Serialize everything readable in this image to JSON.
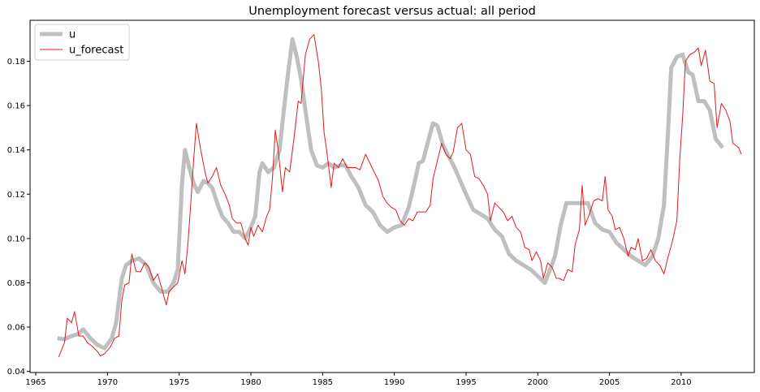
{
  "chart_data": {
    "type": "line",
    "title": "Unemployment forecast versus actual: all period",
    "xlabel": "",
    "ylabel": "",
    "xlim": [
      1964.6,
      1967.0
    ],
    "ylim": [
      0.0395,
      0.1985
    ],
    "xticks": [
      1965,
      1970,
      1975,
      1980,
      1985,
      1990,
      1995,
      2000,
      2005,
      2010
    ],
    "xtick_labels": [
      "1965",
      "1970",
      "1975",
      "1980",
      "1985",
      "1990",
      "1995",
      "2000",
      "2005",
      "2010"
    ],
    "yticks": [
      0.04,
      0.06,
      0.08,
      0.1,
      0.12,
      0.14,
      0.16,
      0.18
    ],
    "ytick_labels": [
      "0.04",
      "0.06",
      "0.08",
      "0.10",
      "0.12",
      "0.14",
      "0.16",
      "0.18"
    ],
    "legend": {
      "position": "top-left",
      "entries": [
        "u",
        "u_forecast"
      ]
    },
    "grid": false,
    "series": [
      {
        "name": "u",
        "color": "#bfbfbf",
        "points": [
          [
            1966.5,
            0.055
          ],
          [
            1967.0,
            0.0545
          ],
          [
            1967.5,
            0.056
          ],
          [
            1968.0,
            0.057
          ],
          [
            1968.3,
            0.059
          ],
          [
            1968.8,
            0.055
          ],
          [
            1969.3,
            0.052
          ],
          [
            1969.8,
            0.0505
          ],
          [
            1970.3,
            0.055
          ],
          [
            1970.6,
            0.062
          ],
          [
            1971.0,
            0.082
          ],
          [
            1971.3,
            0.088
          ],
          [
            1971.7,
            0.09
          ],
          [
            1972.2,
            0.091
          ],
          [
            1972.7,
            0.088
          ],
          [
            1973.2,
            0.08
          ],
          [
            1973.7,
            0.076
          ],
          [
            1974.2,
            0.076
          ],
          [
            1974.6,
            0.08
          ],
          [
            1974.9,
            0.086
          ],
          [
            1975.2,
            0.125
          ],
          [
            1975.4,
            0.14
          ],
          [
            1975.7,
            0.132
          ],
          [
            1976.0,
            0.125
          ],
          [
            1976.3,
            0.121
          ],
          [
            1976.7,
            0.126
          ],
          [
            1977.0,
            0.125
          ],
          [
            1977.3,
            0.123
          ],
          [
            1977.7,
            0.115
          ],
          [
            1978.0,
            0.11
          ],
          [
            1978.4,
            0.107
          ],
          [
            1978.8,
            0.103
          ],
          [
            1979.2,
            0.103
          ],
          [
            1979.6,
            0.1
          ],
          [
            1980.0,
            0.105
          ],
          [
            1980.3,
            0.11
          ],
          [
            1980.6,
            0.13
          ],
          [
            1980.8,
            0.134
          ],
          [
            1981.2,
            0.13
          ],
          [
            1981.6,
            0.132
          ],
          [
            1982.0,
            0.14
          ],
          [
            1982.3,
            0.158
          ],
          [
            1982.6,
            0.175
          ],
          [
            1982.9,
            0.19
          ],
          [
            1983.2,
            0.182
          ],
          [
            1983.5,
            0.172
          ],
          [
            1983.8,
            0.158
          ],
          [
            1984.2,
            0.14
          ],
          [
            1984.6,
            0.133
          ],
          [
            1985.0,
            0.132
          ],
          [
            1985.4,
            0.134
          ],
          [
            1985.8,
            0.132
          ],
          [
            1986.2,
            0.133
          ],
          [
            1986.6,
            0.133
          ],
          [
            1987.0,
            0.128
          ],
          [
            1987.5,
            0.123
          ],
          [
            1988.0,
            0.115
          ],
          [
            1988.5,
            0.112
          ],
          [
            1989.0,
            0.106
          ],
          [
            1989.5,
            0.103
          ],
          [
            1990.0,
            0.105
          ],
          [
            1990.5,
            0.106
          ],
          [
            1991.0,
            0.114
          ],
          [
            1991.4,
            0.125
          ],
          [
            1991.7,
            0.134
          ],
          [
            1992.0,
            0.135
          ],
          [
            1992.4,
            0.145
          ],
          [
            1992.7,
            0.152
          ],
          [
            1993.0,
            0.151
          ],
          [
            1993.4,
            0.142
          ],
          [
            1993.8,
            0.137
          ],
          [
            1994.2,
            0.132
          ],
          [
            1994.6,
            0.126
          ],
          [
            1995.0,
            0.12
          ],
          [
            1995.5,
            0.113
          ],
          [
            1996.0,
            0.111
          ],
          [
            1996.5,
            0.109
          ],
          [
            1997.0,
            0.104
          ],
          [
            1997.5,
            0.101
          ],
          [
            1998.0,
            0.093
          ],
          [
            1998.5,
            0.09
          ],
          [
            1999.0,
            0.088
          ],
          [
            1999.5,
            0.086
          ],
          [
            2000.0,
            0.083
          ],
          [
            2000.5,
            0.08
          ],
          [
            2000.8,
            0.085
          ],
          [
            2001.2,
            0.092
          ],
          [
            2001.6,
            0.106
          ],
          [
            2002.0,
            0.116
          ],
          [
            2002.5,
            0.116
          ],
          [
            2003.0,
            0.116
          ],
          [
            2003.5,
            0.116
          ],
          [
            2004.0,
            0.107
          ],
          [
            2004.5,
            0.104
          ],
          [
            2005.0,
            0.103
          ],
          [
            2005.5,
            0.098
          ],
          [
            2006.0,
            0.095
          ],
          [
            2006.5,
            0.092
          ],
          [
            2007.0,
            0.09
          ],
          [
            2007.5,
            0.088
          ],
          [
            2008.0,
            0.092
          ],
          [
            2008.4,
            0.1
          ],
          [
            2008.8,
            0.115
          ],
          [
            2009.1,
            0.15
          ],
          [
            2009.3,
            0.177
          ],
          [
            2009.7,
            0.182
          ],
          [
            2010.1,
            0.183
          ],
          [
            2010.5,
            0.175
          ],
          [
            2010.8,
            0.174
          ],
          [
            2011.2,
            0.162
          ],
          [
            2011.6,
            0.162
          ],
          [
            2012.0,
            0.158
          ],
          [
            2012.4,
            0.145
          ],
          [
            2012.9,
            0.141
          ]
        ]
      },
      {
        "name": "u_forecast",
        "color": "#e41a1c",
        "points": [
          [
            1966.6,
            0.0465
          ],
          [
            1967.0,
            0.053
          ],
          [
            1967.2,
            0.064
          ],
          [
            1967.5,
            0.062
          ],
          [
            1967.7,
            0.067
          ],
          [
            1968.0,
            0.056
          ],
          [
            1968.3,
            0.056
          ],
          [
            1968.6,
            0.053
          ],
          [
            1969.0,
            0.051
          ],
          [
            1969.3,
            0.049
          ],
          [
            1969.5,
            0.047
          ],
          [
            1969.8,
            0.048
          ],
          [
            1970.2,
            0.051
          ],
          [
            1970.5,
            0.055
          ],
          [
            1970.8,
            0.056
          ],
          [
            1971.0,
            0.072
          ],
          [
            1971.2,
            0.079
          ],
          [
            1971.5,
            0.08
          ],
          [
            1971.7,
            0.093
          ],
          [
            1972.0,
            0.085
          ],
          [
            1972.3,
            0.085
          ],
          [
            1972.6,
            0.089
          ],
          [
            1972.9,
            0.087
          ],
          [
            1973.2,
            0.081
          ],
          [
            1973.5,
            0.084
          ],
          [
            1973.8,
            0.077
          ],
          [
            1974.1,
            0.07
          ],
          [
            1974.3,
            0.076
          ],
          [
            1974.6,
            0.078
          ],
          [
            1974.9,
            0.08
          ],
          [
            1975.2,
            0.09
          ],
          [
            1975.4,
            0.084
          ],
          [
            1975.6,
            0.097
          ],
          [
            1975.8,
            0.115
          ],
          [
            1976.0,
            0.135
          ],
          [
            1976.2,
            0.152
          ],
          [
            1976.5,
            0.14
          ],
          [
            1976.8,
            0.13
          ],
          [
            1977.0,
            0.125
          ],
          [
            1977.3,
            0.128
          ],
          [
            1977.6,
            0.132
          ],
          [
            1977.9,
            0.124
          ],
          [
            1978.2,
            0.12
          ],
          [
            1978.5,
            0.115
          ],
          [
            1978.7,
            0.109
          ],
          [
            1979.0,
            0.107
          ],
          [
            1979.3,
            0.107
          ],
          [
            1979.6,
            0.1
          ],
          [
            1979.8,
            0.097
          ],
          [
            1980.0,
            0.105
          ],
          [
            1980.2,
            0.101
          ],
          [
            1980.5,
            0.106
          ],
          [
            1980.8,
            0.103
          ],
          [
            1981.1,
            0.11
          ],
          [
            1981.3,
            0.113
          ],
          [
            1981.5,
            0.127
          ],
          [
            1981.7,
            0.149
          ],
          [
            1981.9,
            0.14
          ],
          [
            1982.2,
            0.121
          ],
          [
            1982.4,
            0.132
          ],
          [
            1982.7,
            0.13
          ],
          [
            1983.0,
            0.145
          ],
          [
            1983.3,
            0.162
          ],
          [
            1983.5,
            0.161
          ],
          [
            1983.8,
            0.183
          ],
          [
            1984.1,
            0.19
          ],
          [
            1984.4,
            0.192
          ],
          [
            1984.7,
            0.18
          ],
          [
            1984.9,
            0.168
          ],
          [
            1985.1,
            0.148
          ],
          [
            1985.3,
            0.139
          ],
          [
            1985.6,
            0.123
          ],
          [
            1985.8,
            0.134
          ],
          [
            1986.1,
            0.132
          ],
          [
            1986.4,
            0.136
          ],
          [
            1986.7,
            0.132
          ],
          [
            1987.0,
            0.132
          ],
          [
            1987.3,
            0.132
          ],
          [
            1987.6,
            0.131
          ],
          [
            1988.0,
            0.138
          ],
          [
            1988.3,
            0.134
          ],
          [
            1988.6,
            0.13
          ],
          [
            1988.9,
            0.126
          ],
          [
            1989.2,
            0.119
          ],
          [
            1989.5,
            0.116
          ],
          [
            1989.8,
            0.114
          ],
          [
            1990.1,
            0.113
          ],
          [
            1990.4,
            0.108
          ],
          [
            1990.7,
            0.106
          ],
          [
            1991.0,
            0.109
          ],
          [
            1991.3,
            0.108
          ],
          [
            1991.6,
            0.112
          ],
          [
            1991.9,
            0.112
          ],
          [
            1992.2,
            0.112
          ],
          [
            1992.5,
            0.115
          ],
          [
            1992.7,
            0.127
          ],
          [
            1993.0,
            0.135
          ],
          [
            1993.3,
            0.143
          ],
          [
            1993.6,
            0.138
          ],
          [
            1993.9,
            0.136
          ],
          [
            1994.1,
            0.139
          ],
          [
            1994.4,
            0.15
          ],
          [
            1994.7,
            0.152
          ],
          [
            1995.0,
            0.14
          ],
          [
            1995.3,
            0.138
          ],
          [
            1995.6,
            0.128
          ],
          [
            1995.9,
            0.127
          ],
          [
            1996.2,
            0.124
          ],
          [
            1996.5,
            0.12
          ],
          [
            1996.7,
            0.108
          ],
          [
            1997.0,
            0.116
          ],
          [
            1997.3,
            0.114
          ],
          [
            1997.6,
            0.112
          ],
          [
            1997.9,
            0.108
          ],
          [
            1998.2,
            0.11
          ],
          [
            1998.5,
            0.105
          ],
          [
            1998.8,
            0.103
          ],
          [
            1999.1,
            0.096
          ],
          [
            1999.4,
            0.095
          ],
          [
            1999.6,
            0.09
          ],
          [
            1999.9,
            0.094
          ],
          [
            2000.2,
            0.09
          ],
          [
            2000.4,
            0.082
          ],
          [
            2000.7,
            0.089
          ],
          [
            2001.0,
            0.087
          ],
          [
            2001.3,
            0.082
          ],
          [
            2001.5,
            0.082
          ],
          [
            2001.8,
            0.081
          ],
          [
            2002.1,
            0.086
          ],
          [
            2002.4,
            0.085
          ],
          [
            2002.6,
            0.097
          ],
          [
            2002.9,
            0.104
          ],
          [
            2003.1,
            0.124
          ],
          [
            2003.3,
            0.106
          ],
          [
            2003.6,
            0.111
          ],
          [
            2003.9,
            0.117
          ],
          [
            2004.2,
            0.118
          ],
          [
            2004.5,
            0.117
          ],
          [
            2004.7,
            0.128
          ],
          [
            2004.9,
            0.113
          ],
          [
            2005.2,
            0.11
          ],
          [
            2005.4,
            0.104
          ],
          [
            2005.7,
            0.105
          ],
          [
            2006.0,
            0.1
          ],
          [
            2006.3,
            0.092
          ],
          [
            2006.5,
            0.096
          ],
          [
            2006.8,
            0.095
          ],
          [
            2007.0,
            0.1
          ],
          [
            2007.3,
            0.09
          ],
          [
            2007.6,
            0.091
          ],
          [
            2007.9,
            0.095
          ],
          [
            2008.2,
            0.09
          ],
          [
            2008.5,
            0.088
          ],
          [
            2008.8,
            0.084
          ],
          [
            2009.1,
            0.092
          ],
          [
            2009.4,
            0.099
          ],
          [
            2009.7,
            0.108
          ],
          [
            2009.9,
            0.136
          ],
          [
            2010.1,
            0.155
          ],
          [
            2010.3,
            0.18
          ],
          [
            2010.6,
            0.183
          ],
          [
            2010.9,
            0.184
          ],
          [
            2011.2,
            0.186
          ],
          [
            2011.4,
            0.178
          ],
          [
            2011.7,
            0.185
          ],
          [
            2012.0,
            0.171
          ],
          [
            2012.3,
            0.17
          ],
          [
            2012.5,
            0.15
          ],
          [
            2012.8,
            0.161
          ],
          [
            2013.1,
            0.158
          ],
          [
            2013.4,
            0.153
          ],
          [
            2013.6,
            0.143
          ],
          [
            2014.0,
            0.141
          ],
          [
            2014.2,
            0.138
          ]
        ]
      }
    ]
  }
}
